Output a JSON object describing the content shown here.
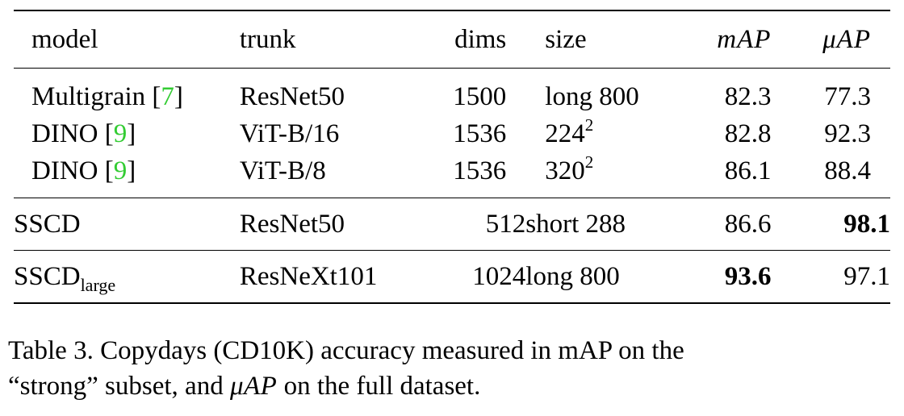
{
  "table": {
    "headers": {
      "model": "model",
      "trunk": "trunk",
      "dims": "dims",
      "size": "size",
      "map": "mAP",
      "muap": "μAP"
    },
    "rows": [
      {
        "model": "Multigrain [",
        "cite": "7",
        "close": "]",
        "trunk": "ResNet50",
        "dims": "1500",
        "size": "long 800",
        "size_sup": "",
        "map": "82.3",
        "muap": "77.3"
      },
      {
        "model": "DINO [",
        "cite": "9",
        "close": "]",
        "trunk": "ViT-B/16",
        "dims": "1536",
        "size": "224",
        "size_sup": "2",
        "map": "82.8",
        "muap": "92.3"
      },
      {
        "model": "DINO [",
        "cite": "9",
        "close": "]",
        "trunk": "ViT-B/8",
        "dims": "1536",
        "size": "320",
        "size_sup": "2",
        "map": "86.1",
        "muap": "88.4"
      },
      {
        "model": "SSCD",
        "model_sub": "",
        "trunk": "ResNet50",
        "dims": "512",
        "size": "short 288",
        "map": "86.6",
        "muap": "98.1"
      },
      {
        "model": "SSCD",
        "model_sub": "large",
        "trunk": "ResNeXt101",
        "dims": "1024",
        "size": "long 800",
        "map": "93.6",
        "muap": "97.1"
      }
    ]
  },
  "caption": {
    "part1": "Table 3.  Copydays (CD10K) accuracy measured in mAP on the",
    "part2": "“strong” subset, and ",
    "part2_math": "μAP",
    "part3": " on the full dataset."
  },
  "colors": {
    "citation": "#33cc33"
  }
}
